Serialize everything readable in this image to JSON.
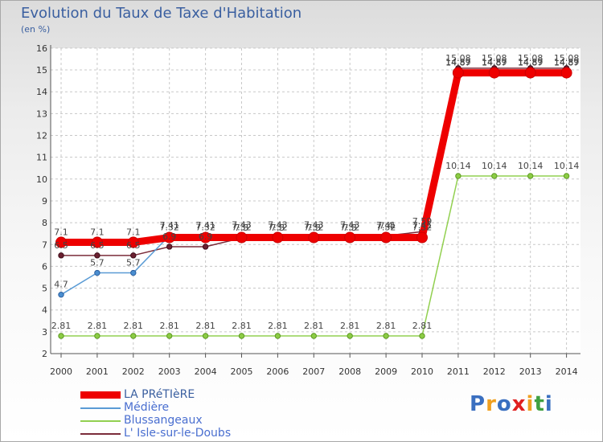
{
  "chart_data": {
    "type": "line",
    "title": "Evolution du Taux de Taxe d'Habitation",
    "subtitle": "(en %)",
    "ylim": [
      2,
      16
    ],
    "yticks": [
      "2",
      "3",
      "4",
      "5",
      "6",
      "7",
      "8",
      "9",
      "10",
      "11",
      "12",
      "13",
      "14",
      "15",
      "16"
    ],
    "categories": [
      "2000",
      "2001",
      "2002",
      "2003",
      "2004",
      "2005",
      "2006",
      "2007",
      "2008",
      "2009",
      "2010",
      "2011",
      "2012",
      "2013",
      "2014"
    ],
    "series": [
      {
        "name": "LA PRéTIèRE",
        "color": "#ee0000",
        "values": [
          7.1,
          7.1,
          7.1,
          7.32,
          7.32,
          7.32,
          7.32,
          7.32,
          7.32,
          7.32,
          7.32,
          14.87,
          14.87,
          14.87,
          14.87
        ],
        "labels": [
          "7.1",
          "7.1",
          "7.1",
          "7.32",
          "7.32",
          "7.32",
          "7.32",
          "7.32",
          "7.32",
          "7.32",
          "7.32",
          "14.87",
          "14.87",
          "14.87",
          "14.87"
        ]
      },
      {
        "name": "Médière",
        "color": "#5a9bd5",
        "values": [
          4.7,
          5.7,
          5.7,
          7.41,
          7.41,
          7.43,
          7.43,
          7.43,
          7.43,
          7.41,
          7.41,
          14.89,
          14.89,
          14.89,
          14.89
        ],
        "labels": [
          "4.7",
          "5.7",
          "5.7",
          "7.41",
          "7.41",
          "7.43",
          "7.43",
          "7.43",
          "7.43",
          "7.41",
          "7.41",
          "14.89",
          "14.89",
          "14.89",
          "14.89"
        ]
      },
      {
        "name": "Blussangeaux",
        "color": "#92d050",
        "values": [
          2.81,
          2.81,
          2.81,
          2.81,
          2.81,
          2.81,
          2.81,
          2.81,
          2.81,
          2.81,
          2.81,
          10.14,
          10.14,
          10.14,
          10.14
        ],
        "labels": [
          "2.81",
          "2.81",
          "2.81",
          "2.81",
          "2.81",
          "2.81",
          "2.81",
          "2.81",
          "2.81",
          "2.81",
          "2.81",
          "10.14",
          "10.14",
          "10.14",
          "10.14"
        ]
      },
      {
        "name": "L' Isle-sur-le-Doubs",
        "color": "#7b2c3a",
        "values": [
          6.5,
          6.5,
          6.5,
          6.9,
          6.9,
          7.3,
          7.3,
          7.3,
          7.3,
          7.4,
          7.59,
          15.08,
          15.08,
          15.08,
          15.08
        ],
        "labels": [
          "6.5",
          "6.5",
          "6.5",
          "6.9",
          "6.9",
          "7.3",
          "7.3",
          "7.3",
          "7.3",
          "7.4",
          "7.59",
          "15.08",
          "15.08",
          "15.08",
          "15.08"
        ]
      }
    ]
  },
  "logo": {
    "letters": [
      "P",
      "r",
      "o",
      "x",
      "i",
      "t",
      "i"
    ],
    "colors": [
      "#3a6fc0",
      "#f0a020",
      "#3a6fc0",
      "#e02020",
      "#f0a020",
      "#40a040",
      "#3a6fc0"
    ]
  }
}
